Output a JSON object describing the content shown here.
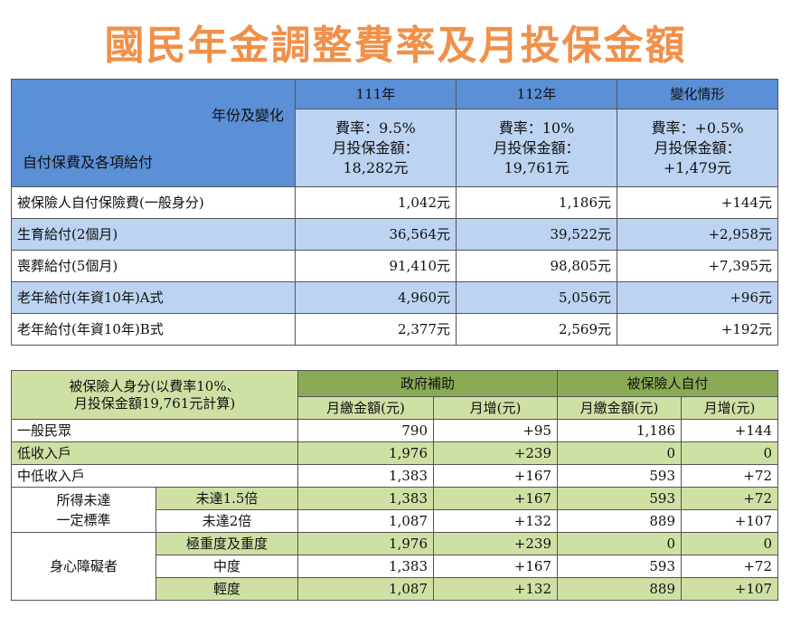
{
  "title": "國民年金調整費率及月投保金額",
  "table1": {
    "corner_top": "年份及變化",
    "corner_bottom": "自付保費及各項給付",
    "columns": [
      {
        "year": "111年",
        "rate": "費率：9.5%",
        "amount_label": "月投保金額：",
        "amount": "18,282元"
      },
      {
        "year": "112年",
        "rate": "費率：10%",
        "amount_label": "月投保金額：",
        "amount": "19,761元"
      },
      {
        "year": "變化情形",
        "rate": "費率：+0.5%",
        "amount_label": "月投保金額：",
        "amount": "+1,479元"
      }
    ],
    "rows": [
      {
        "label": "被保險人自付保險費(一般身分)",
        "v111": "1,042元",
        "v112": "1,186元",
        "change": "+144元"
      },
      {
        "label": "生育給付(2個月)",
        "v111": "36,564元",
        "v112": "39,522元",
        "change": "+2,958元"
      },
      {
        "label": "喪葬給付(5個月)",
        "v111": "91,410元",
        "v112": "98,805元",
        "change": "+7,395元"
      },
      {
        "label": "老年給付(年資10年)A式",
        "v111": "4,960元",
        "v112": "5,056元",
        "change": "+96元"
      },
      {
        "label": "老年給付(年資10年)B式",
        "v111": "2,377元",
        "v112": "2,569元",
        "change": "+192元"
      }
    ]
  },
  "table2": {
    "header_line1": "被保險人身分(以費率10%、",
    "header_line2": "月投保金額19,761元計算)",
    "gov_label": "政府補助",
    "self_label": "被保險人自付",
    "sub_monthly": "月繳金額(元)",
    "sub_increase": "月增(元)",
    "rows": [
      {
        "label": "一般民眾",
        "gov_monthly": "790",
        "gov_increase": "+95",
        "self_monthly": "1,186",
        "self_increase": "+144"
      },
      {
        "label": "低收入戶",
        "gov_monthly": "1,976",
        "gov_increase": "+239",
        "self_monthly": "0",
        "self_increase": "0"
      },
      {
        "label": "中低收入戶",
        "gov_monthly": "1,383",
        "gov_increase": "+167",
        "self_monthly": "593",
        "self_increase": "+72"
      }
    ],
    "income_group": {
      "label_line1": "所得未達",
      "label_line2": "一定標準",
      "rows": [
        {
          "label": "未達1.5倍",
          "gov_monthly": "1,383",
          "gov_increase": "+167",
          "self_monthly": "593",
          "self_increase": "+72"
        },
        {
          "label": "未達2倍",
          "gov_monthly": "1,087",
          "gov_increase": "+132",
          "self_monthly": "889",
          "self_increase": "+107"
        }
      ]
    },
    "disability_group": {
      "label": "身心障礙者",
      "rows": [
        {
          "label": "極重度及重度",
          "gov_monthly": "1,976",
          "gov_increase": "+239",
          "self_monthly": "0",
          "self_increase": "0"
        },
        {
          "label": "中度",
          "gov_monthly": "1,383",
          "gov_increase": "+167",
          "self_monthly": "593",
          "self_increase": "+72"
        },
        {
          "label": "輕度",
          "gov_monthly": "1,087",
          "gov_increase": "+132",
          "self_monthly": "889",
          "self_increase": "+107"
        }
      ]
    }
  }
}
